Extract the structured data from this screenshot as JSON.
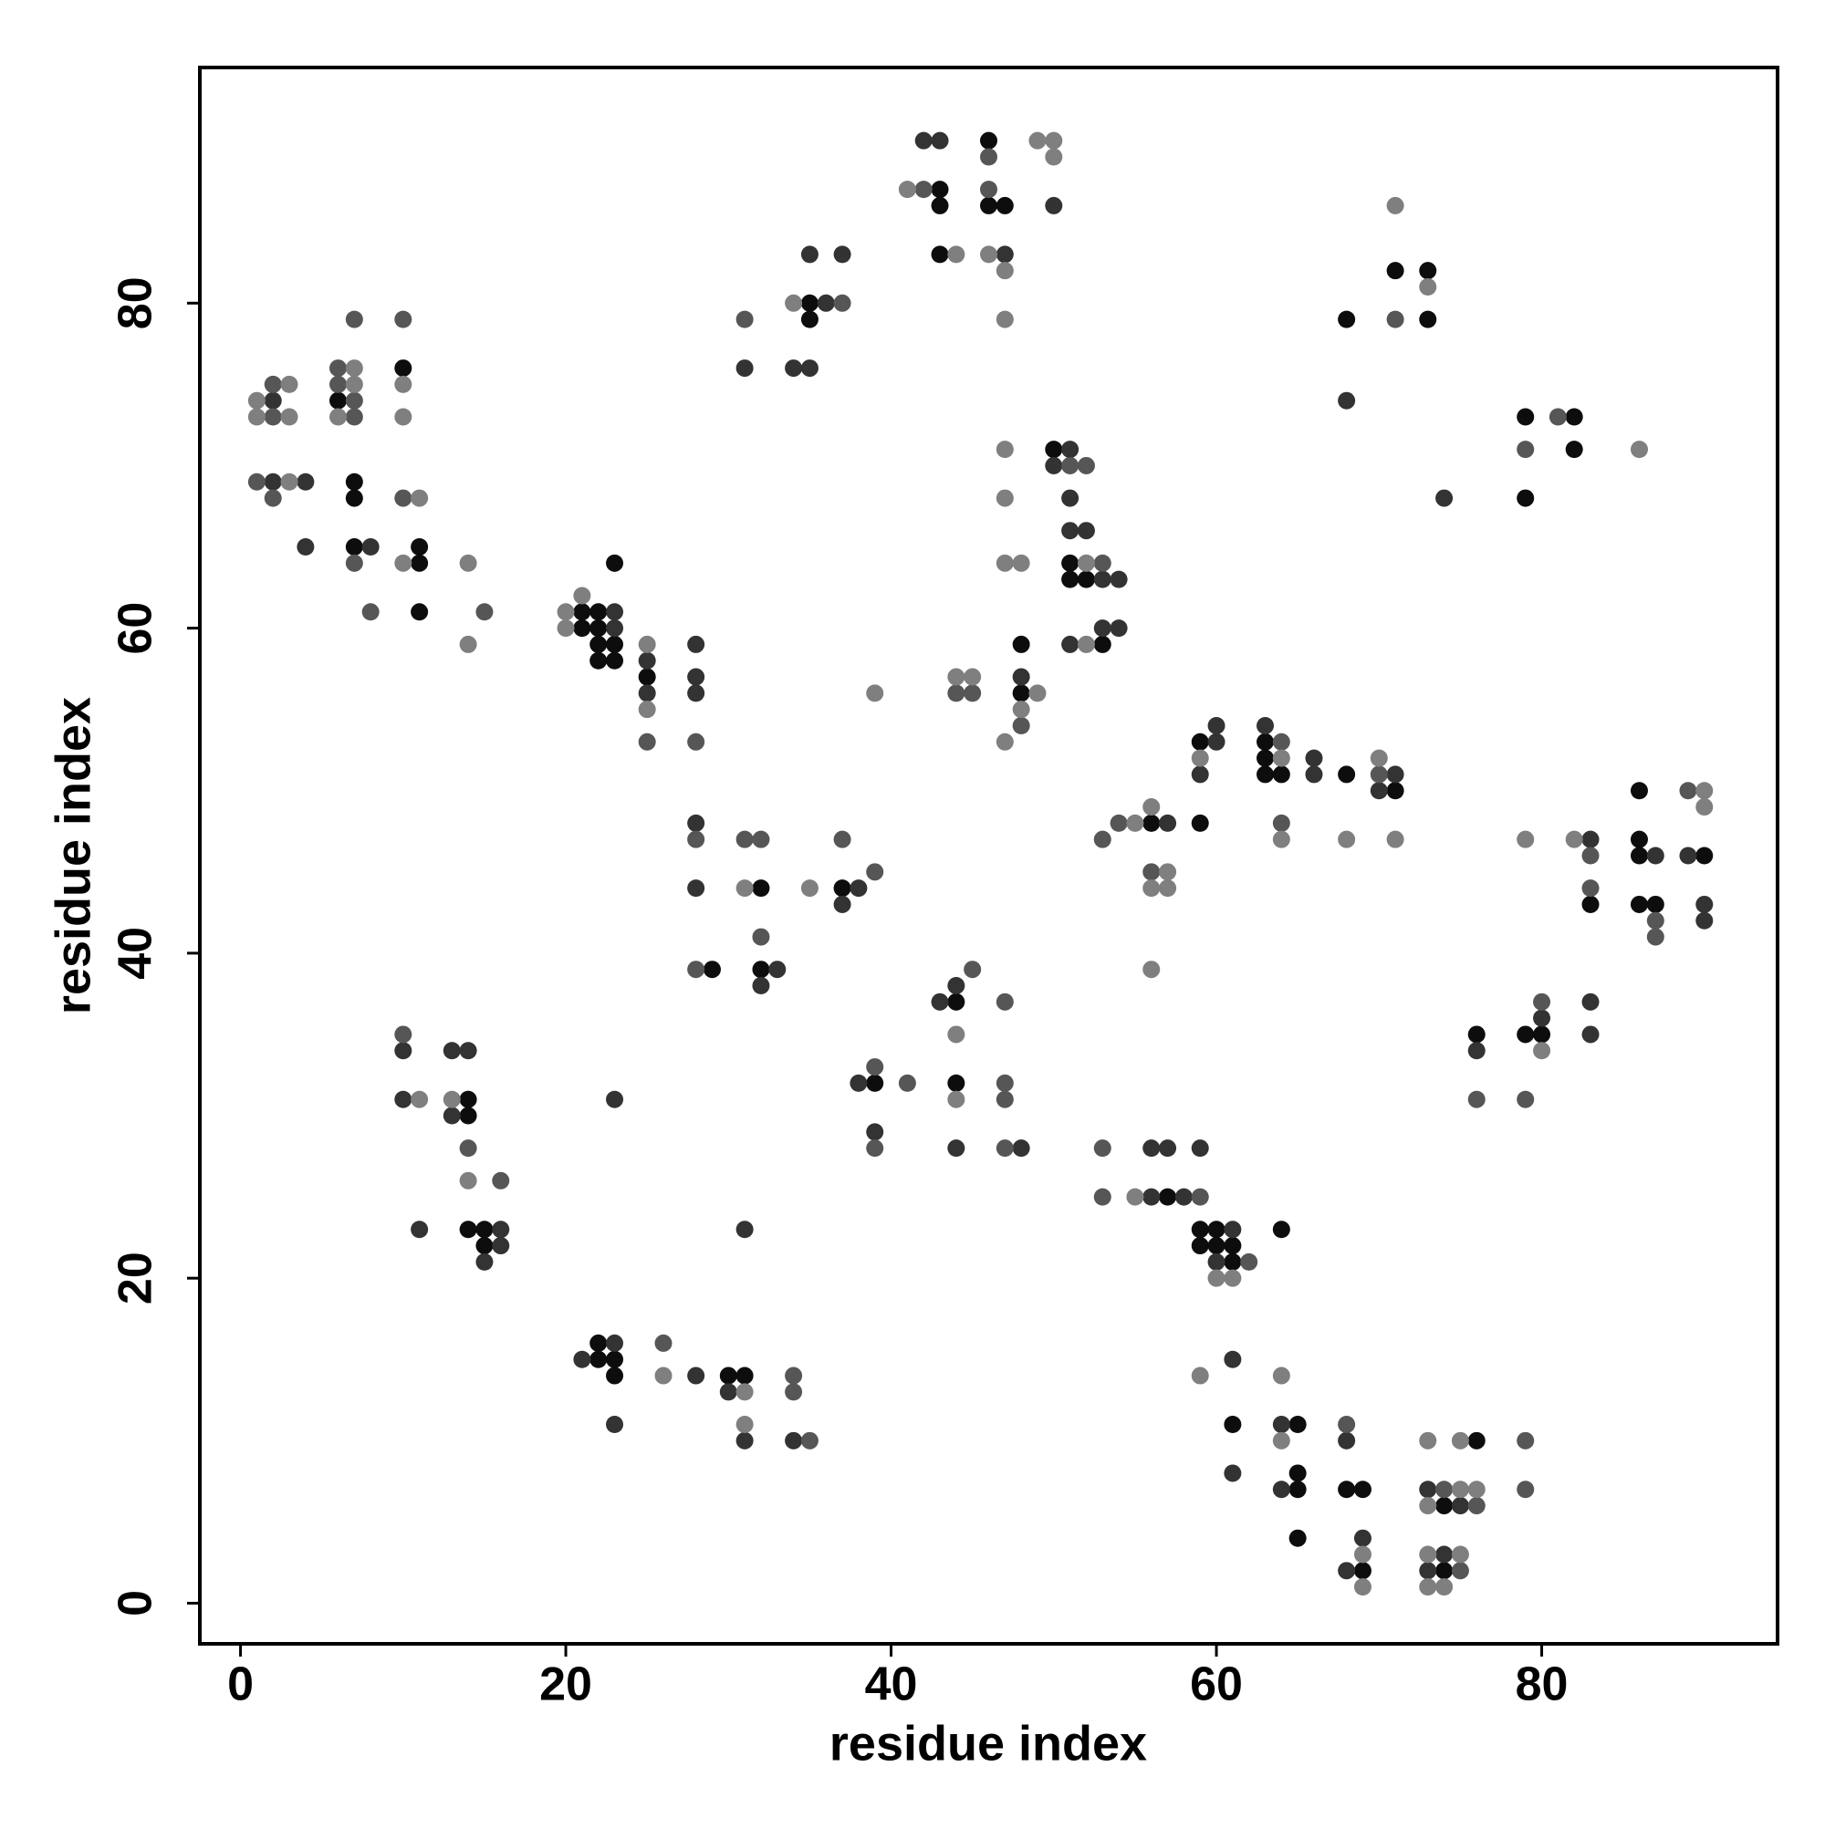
{
  "chart_data": {
    "type": "scatter",
    "xlabel": "residue index",
    "ylabel": "residue index",
    "xlim": [
      -2.5,
      94.5
    ],
    "ylim": [
      -2.5,
      94.5
    ],
    "xticks": [
      0,
      20,
      40,
      60,
      80
    ],
    "yticks": [
      0,
      20,
      40,
      60,
      80
    ],
    "grid": false,
    "series": [
      {
        "color": "#0d0d0d",
        "x": [
          6,
          7,
          7,
          7,
          10,
          11,
          11,
          11,
          21,
          21,
          22,
          22,
          22,
          22,
          23,
          23,
          23,
          25,
          35,
          35,
          43,
          43,
          43,
          46,
          46,
          47,
          68,
          71,
          73,
          73,
          79,
          79,
          82,
          82,
          50,
          51,
          51,
          52,
          53,
          48,
          48,
          56,
          59,
          59,
          63,
          63,
          63,
          64,
          68,
          71,
          29,
          32,
          32,
          37,
          83,
          86,
          86,
          86,
          86,
          87,
          90,
          76,
          79,
          80,
          39,
          44,
          44,
          14,
          14,
          14,
          15,
          15,
          57,
          59,
          59,
          60,
          60,
          61,
          61,
          64,
          22,
          22,
          23,
          23,
          30,
          31,
          61,
          65,
          65,
          65,
          65,
          68,
          69,
          69,
          74,
          74,
          76
        ],
        "values": [
          74,
          69,
          68,
          65,
          76,
          65,
          64,
          61,
          61,
          60,
          61,
          60,
          59,
          58,
          64,
          59,
          58,
          57,
          80,
          79,
          87,
          86,
          83,
          90,
          86,
          86,
          79,
          82,
          82,
          79,
          73,
          68,
          73,
          71,
          71,
          64,
          63,
          63,
          59,
          59,
          56,
          48,
          53,
          48,
          53,
          52,
          51,
          51,
          51,
          50,
          39,
          44,
          39,
          44,
          43,
          50,
          47,
          46,
          43,
          43,
          46,
          35,
          35,
          35,
          32,
          37,
          32,
          31,
          30,
          23,
          23,
          22,
          25,
          23,
          22,
          23,
          22,
          22,
          21,
          23,
          16,
          15,
          15,
          14,
          14,
          14,
          11,
          11,
          8,
          7,
          4,
          7,
          7,
          2,
          6,
          2,
          10
        ]
      },
      {
        "color": "#333333",
        "x": [
          2,
          2,
          4,
          4,
          8,
          23,
          23,
          25,
          25,
          28,
          28,
          28,
          31,
          34,
          35,
          35,
          36,
          37,
          42,
          43,
          47,
          50,
          68,
          74,
          50,
          51,
          51,
          51,
          51,
          52,
          53,
          53,
          54,
          54,
          48,
          57,
          59,
          60,
          60,
          63,
          66,
          66,
          70,
          71,
          28,
          28,
          32,
          33,
          37,
          38,
          83,
          87,
          89,
          90,
          90,
          76,
          80,
          83,
          83,
          38,
          39,
          43,
          44,
          44,
          48,
          10,
          10,
          11,
          13,
          13,
          14,
          15,
          16,
          16,
          23,
          31,
          56,
          56,
          57,
          58,
          59,
          60,
          61,
          21,
          23,
          23,
          28,
          30,
          31,
          34,
          61,
          61,
          64,
          64,
          68,
          68,
          69,
          73,
          73,
          74,
          75
        ],
        "values": [
          74,
          69,
          69,
          65,
          65,
          61,
          60,
          58,
          56,
          59,
          57,
          56,
          76,
          76,
          83,
          76,
          80,
          83,
          90,
          90,
          83,
          86,
          74,
          68,
          70,
          71,
          68,
          66,
          59,
          66,
          63,
          60,
          63,
          60,
          57,
          48,
          51,
          54,
          53,
          54,
          52,
          51,
          50,
          51,
          48,
          44,
          38,
          39,
          43,
          44,
          47,
          46,
          46,
          43,
          42,
          34,
          36,
          37,
          35,
          32,
          29,
          37,
          38,
          28,
          28,
          34,
          31,
          23,
          34,
          30,
          34,
          21,
          23,
          22,
          31,
          23,
          28,
          25,
          28,
          25,
          28,
          21,
          23,
          15,
          16,
          11,
          14,
          13,
          10,
          10,
          15,
          8,
          11,
          7,
          10,
          2,
          4,
          7,
          2,
          3,
          6
        ]
      },
      {
        "color": "#565656",
        "x": [
          1,
          2,
          2,
          2,
          6,
          6,
          7,
          7,
          7,
          7,
          8,
          10,
          10,
          15,
          25,
          28,
          31,
          37,
          42,
          46,
          46,
          71,
          79,
          81,
          51,
          52,
          53,
          44,
          45,
          48,
          53,
          54,
          56,
          64,
          64,
          70,
          28,
          28,
          31,
          32,
          32,
          37,
          39,
          83,
          83,
          87,
          87,
          89,
          76,
          79,
          80,
          39,
          39,
          41,
          45,
          47,
          47,
          47,
          47,
          10,
          14,
          16,
          53,
          53,
          59,
          62,
          26,
          34,
          34,
          35,
          68,
          74,
          75,
          76,
          79,
          79
        ],
        "values": [
          69,
          75,
          73,
          68,
          76,
          75,
          79,
          74,
          73,
          64,
          61,
          79,
          68,
          61,
          53,
          53,
          79,
          80,
          87,
          89,
          87,
          79,
          71,
          73,
          70,
          70,
          64,
          56,
          56,
          54,
          47,
          48,
          45,
          53,
          48,
          51,
          47,
          39,
          47,
          47,
          41,
          47,
          45,
          46,
          44,
          42,
          41,
          50,
          31,
          31,
          37,
          33,
          28,
          32,
          39,
          37,
          32,
          31,
          28,
          35,
          28,
          26,
          28,
          25,
          25,
          21,
          16,
          14,
          13,
          10,
          11,
          7,
          2,
          6,
          10,
          7
        ]
      },
      {
        "color": "#7f7f7f",
        "x": [
          1,
          1,
          3,
          3,
          3,
          6,
          7,
          7,
          10,
          10,
          10,
          11,
          14,
          14,
          20,
          20,
          21,
          25,
          25,
          34,
          41,
          44,
          46,
          47,
          47,
          49,
          50,
          50,
          71,
          73,
          86,
          47,
          47,
          47,
          48,
          52,
          52,
          44,
          45,
          48,
          47,
          49,
          39,
          55,
          56,
          56,
          56,
          57,
          57,
          59,
          64,
          64,
          68,
          70,
          71,
          31,
          35,
          79,
          82,
          90,
          90,
          80,
          44,
          44,
          11,
          13,
          14,
          55,
          60,
          61,
          26,
          31,
          31,
          59,
          64,
          64,
          69,
          69,
          73,
          73,
          73,
          73,
          74,
          75,
          75,
          75,
          76
        ],
        "values": [
          74,
          73,
          75,
          73,
          69,
          73,
          76,
          75,
          75,
          73,
          64,
          68,
          64,
          59,
          61,
          60,
          62,
          59,
          55,
          80,
          87,
          83,
          83,
          82,
          79,
          90,
          90,
          89,
          86,
          81,
          71,
          71,
          68,
          64,
          64,
          64,
          59,
          57,
          57,
          55,
          53,
          56,
          56,
          48,
          49,
          44,
          39,
          45,
          44,
          52,
          52,
          47,
          47,
          52,
          47,
          44,
          44,
          47,
          47,
          50,
          49,
          34,
          35,
          31,
          31,
          31,
          26,
          25,
          20,
          20,
          14,
          13,
          11,
          14,
          14,
          10,
          3,
          1,
          10,
          6,
          3,
          1,
          1,
          10,
          7,
          3,
          7
        ]
      }
    ]
  }
}
